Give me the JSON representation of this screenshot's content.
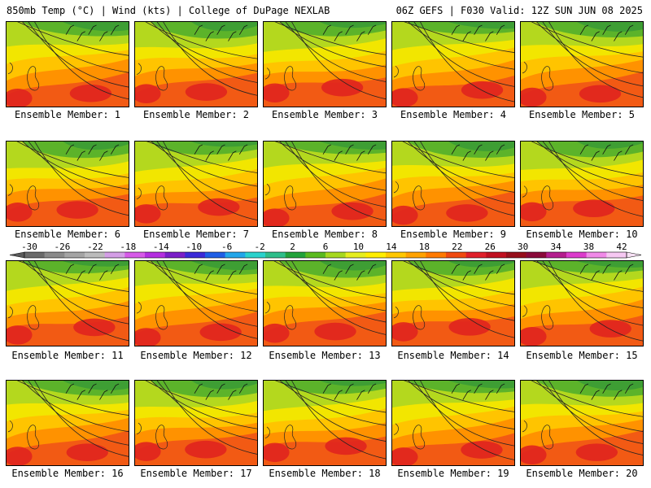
{
  "header": {
    "left": "850mb Temp (°C) | Wind (kts) | College of DuPage NEXLAB",
    "right": "06Z GEFS | F030 Valid: 12Z SUN JUN 08 2025"
  },
  "members": [
    "Ensemble Member: 1",
    "Ensemble Member: 2",
    "Ensemble Member: 3",
    "Ensemble Member: 4",
    "Ensemble Member: 5",
    "Ensemble Member: 6",
    "Ensemble Member: 7",
    "Ensemble Member: 8",
    "Ensemble Member: 9",
    "Ensemble Member: 10",
    "Ensemble Member: 11",
    "Ensemble Member: 12",
    "Ensemble Member: 13",
    "Ensemble Member: 14",
    "Ensemble Member: 15",
    "Ensemble Member: 16",
    "Ensemble Member: 17",
    "Ensemble Member: 18",
    "Ensemble Member: 19",
    "Ensemble Member: 20"
  ],
  "colorbar": {
    "labels": [
      "-30",
      "-26",
      "-22",
      "-18",
      "-14",
      "-10",
      "-6",
      "-2",
      "2",
      "6",
      "10",
      "14",
      "18",
      "22",
      "26",
      "30",
      "34",
      "38",
      "42"
    ],
    "colors": [
      "#6a6a6a",
      "#8a8a8a",
      "#a4a4a4",
      "#bcbcbc",
      "#d49ee6",
      "#d65ae8",
      "#b42ee0",
      "#7a1ec8",
      "#3a2ad8",
      "#1e5ee6",
      "#22a6ea",
      "#2ad2cc",
      "#2ebe8a",
      "#22a23a",
      "#5aba1e",
      "#a6d81e",
      "#e6ee1e",
      "#ffee00",
      "#ffc800",
      "#ffa200",
      "#ff7a00",
      "#f04a10",
      "#e0202a",
      "#c01020",
      "#960e1a",
      "#8a0a3a",
      "#b41e8e",
      "#dc3ccc",
      "#f08ae8",
      "#f6c8f2"
    ]
  },
  "map_colors": {
    "dark_green": "#3e9e34",
    "green": "#5cb32a",
    "yellow_green": "#b4d81e",
    "yellow": "#f2e600",
    "orange_yellow": "#ffc400",
    "orange": "#ff9200",
    "red_orange": "#f25a14",
    "red": "#e0241e"
  }
}
